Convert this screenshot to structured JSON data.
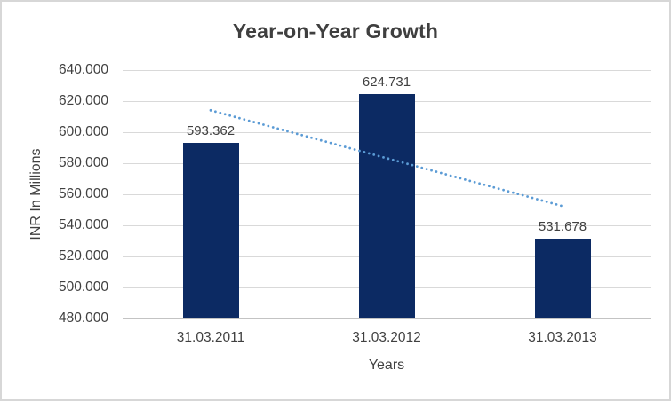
{
  "chart_data": {
    "type": "bar",
    "title": "Year-on-Year Growth",
    "categories": [
      "31.03.2011",
      "31.03.2012",
      "31.03.2013"
    ],
    "values": [
      593.362,
      624.731,
      531.678
    ],
    "data_labels": [
      "593.362",
      "624.731",
      "531.678"
    ],
    "xlabel": "Years",
    "ylabel": "INR In Millions",
    "ylim": [
      480,
      640
    ],
    "ytick_step": 20,
    "ytick_labels": [
      "480.000",
      "500.000",
      "520.000",
      "540.000",
      "560.000",
      "580.000",
      "600.000",
      "620.000",
      "640.000"
    ],
    "grid": true,
    "legend": "none",
    "bar_color": "#0c2a63",
    "trendline": {
      "style": "dotted",
      "color": "#5b9bd5",
      "start_value": 614.099,
      "end_value": 552.415
    }
  },
  "colors": {
    "background": "#ffffff",
    "border": "#d7d7d7",
    "gridline": "#d9d9d9",
    "axis_line": "#c3c3c3",
    "text": "#404040",
    "title_text": "#3f3f3f"
  }
}
